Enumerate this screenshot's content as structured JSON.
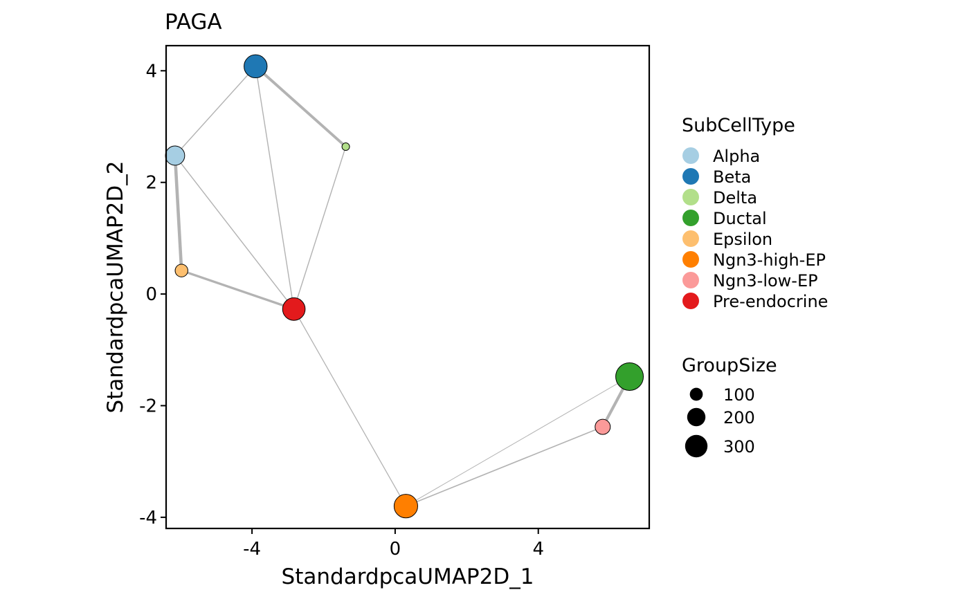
{
  "chart_data": {
    "type": "scatter",
    "subtype": "paga-graph",
    "title": "PAGA",
    "xlabel": "StandardpcaUMAP2D_1",
    "ylabel": "StandardpcaUMAP2D_2",
    "xlim": [
      -6.4,
      7.1
    ],
    "ylim": [
      -4.2,
      4.45
    ],
    "xticks": [
      -4,
      0,
      4
    ],
    "yticks": [
      4,
      2,
      0,
      -2,
      -4
    ],
    "xtick_labels": [
      "-4",
      "0",
      "4"
    ],
    "ytick_labels": [
      "4",
      "2",
      "0",
      "-2",
      "-4"
    ],
    "grid": false,
    "nodes": [
      {
        "name": "Alpha",
        "x": -6.15,
        "y": 2.48,
        "size": 160,
        "color": "#A6CEE3"
      },
      {
        "name": "Beta",
        "x": -3.9,
        "y": 4.08,
        "size": 230,
        "color": "#1F78B4"
      },
      {
        "name": "Delta",
        "x": -1.38,
        "y": 2.64,
        "size": 25,
        "color": "#B2DF8A"
      },
      {
        "name": "Ductal",
        "x": 6.55,
        "y": -1.48,
        "size": 330,
        "color": "#33A02C"
      },
      {
        "name": "Epsilon",
        "x": -5.97,
        "y": 0.42,
        "size": 70,
        "color": "#FDBF6F"
      },
      {
        "name": "Ngn3-high-EP",
        "x": 0.3,
        "y": -3.8,
        "size": 240,
        "color": "#FF7F00"
      },
      {
        "name": "Ngn3-low-EP",
        "x": 5.8,
        "y": -2.38,
        "size": 100,
        "color": "#FB9A99"
      },
      {
        "name": "Pre-endocrine",
        "x": -2.83,
        "y": -0.27,
        "size": 220,
        "color": "#E31A1C"
      }
    ],
    "edges": [
      {
        "from": "Alpha",
        "to": "Beta",
        "weight": 0.15
      },
      {
        "from": "Beta",
        "to": "Delta",
        "weight": 0.75
      },
      {
        "from": "Beta",
        "to": "Pre-endocrine",
        "weight": 0.15
      },
      {
        "from": "Delta",
        "to": "Pre-endocrine",
        "weight": 0.15
      },
      {
        "from": "Alpha",
        "to": "Epsilon",
        "weight": 0.9
      },
      {
        "from": "Alpha",
        "to": "Pre-endocrine",
        "weight": 0.15
      },
      {
        "from": "Epsilon",
        "to": "Pre-endocrine",
        "weight": 0.6
      },
      {
        "from": "Pre-endocrine",
        "to": "Ngn3-high-EP",
        "weight": 0.12
      },
      {
        "from": "Ngn3-high-EP",
        "to": "Ngn3-low-EP",
        "weight": 0.2
      },
      {
        "from": "Ngn3-high-EP",
        "to": "Ductal",
        "weight": 0.05
      },
      {
        "from": "Ngn3-low-EP",
        "to": "Ductal",
        "weight": 0.8
      }
    ],
    "edge_color": "#B3B3B3",
    "legend": {
      "color_title": "SubCellType",
      "color_items": [
        {
          "label": "Alpha",
          "color": "#A6CEE3"
        },
        {
          "label": "Beta",
          "color": "#1F78B4"
        },
        {
          "label": "Delta",
          "color": "#B2DF8A"
        },
        {
          "label": "Ductal",
          "color": "#33A02C"
        },
        {
          "label": "Epsilon",
          "color": "#FDBF6F"
        },
        {
          "label": "Ngn3-high-EP",
          "color": "#FF7F00"
        },
        {
          "label": "Ngn3-low-EP",
          "color": "#FB9A99"
        },
        {
          "label": "Pre-endocrine",
          "color": "#E31A1C"
        }
      ],
      "size_title": "GroupSize",
      "size_items": [
        {
          "label": "100",
          "value": 100
        },
        {
          "label": "200",
          "value": 200
        },
        {
          "label": "300",
          "value": 300
        }
      ],
      "placement": "right"
    }
  }
}
